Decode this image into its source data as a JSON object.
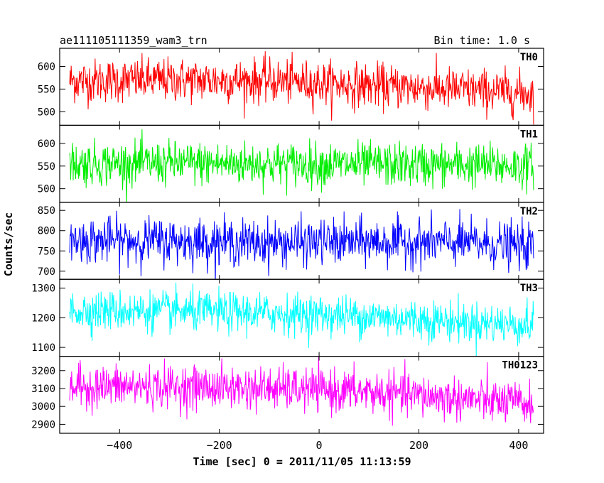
{
  "title_left": "ae111105111359_wam3_trn",
  "title_right": "Bin time: 1.0 s",
  "xlabel": "Time [sec] 0 = 2011/11/05 11:13:59",
  "ylabel": "Counts/sec",
  "chart_data": {
    "type": "line",
    "x_range": [
      -500,
      430
    ],
    "xlim": [
      -520,
      450
    ],
    "x_ticks": [
      -400,
      -200,
      0,
      200,
      400
    ],
    "x_tick_labels": [
      "−400",
      "−200",
      "0",
      "200",
      "400"
    ],
    "bin_time_s": 1.0,
    "panels": [
      {
        "name": "TH0",
        "color": "#ff0000",
        "ylim": [
          470,
          640
        ],
        "y_ticks": [
          500,
          550,
          600
        ],
        "y_tick_labels": [
          "500",
          "550",
          "600"
        ],
        "trend": [
          [
            -500,
            568
          ],
          [
            -300,
            570
          ],
          [
            -100,
            568
          ],
          [
            100,
            558
          ],
          [
            300,
            548
          ],
          [
            430,
            540
          ]
        ],
        "noise_sigma": 24
      },
      {
        "name": "TH1",
        "color": "#00ee00",
        "ylim": [
          470,
          640
        ],
        "y_ticks": [
          500,
          550,
          600
        ],
        "y_tick_labels": [
          "500",
          "550",
          "600"
        ],
        "trend": [
          [
            -500,
            555
          ],
          [
            -300,
            556
          ],
          [
            -100,
            555
          ],
          [
            100,
            553
          ],
          [
            300,
            552
          ],
          [
            430,
            550
          ]
        ],
        "noise_sigma": 24
      },
      {
        "name": "TH2",
        "color": "#0000ff",
        "ylim": [
          680,
          870
        ],
        "y_ticks": [
          700,
          750,
          800,
          850
        ],
        "y_tick_labels": [
          "700",
          "750",
          "800",
          "850"
        ],
        "trend": [
          [
            -500,
            776
          ],
          [
            -300,
            775
          ],
          [
            -100,
            770
          ],
          [
            100,
            772
          ],
          [
            300,
            770
          ],
          [
            430,
            760
          ]
        ],
        "noise_sigma": 28
      },
      {
        "name": "TH3",
        "color": "#00ffff",
        "ylim": [
          1070,
          1330
        ],
        "y_ticks": [
          1100,
          1200,
          1300
        ],
        "y_tick_labels": [
          "1100",
          "1200",
          "1300"
        ],
        "trend": [
          [
            -500,
            1225
          ],
          [
            -300,
            1222
          ],
          [
            -100,
            1215
          ],
          [
            100,
            1205
          ],
          [
            300,
            1185
          ],
          [
            430,
            1175
          ]
        ],
        "noise_sigma": 34
      },
      {
        "name": "TH0123",
        "color": "#ff00ff",
        "ylim": [
          2850,
          3280
        ],
        "y_ticks": [
          2900,
          3000,
          3100,
          3200
        ],
        "y_tick_labels": [
          "2900",
          "3000",
          "3100",
          "3200"
        ],
        "trend": [
          [
            -500,
            3110
          ],
          [
            -300,
            3110
          ],
          [
            -100,
            3100
          ],
          [
            100,
            3080
          ],
          [
            300,
            3040
          ],
          [
            430,
            3010
          ]
        ],
        "noise_sigma": 60
      }
    ]
  }
}
